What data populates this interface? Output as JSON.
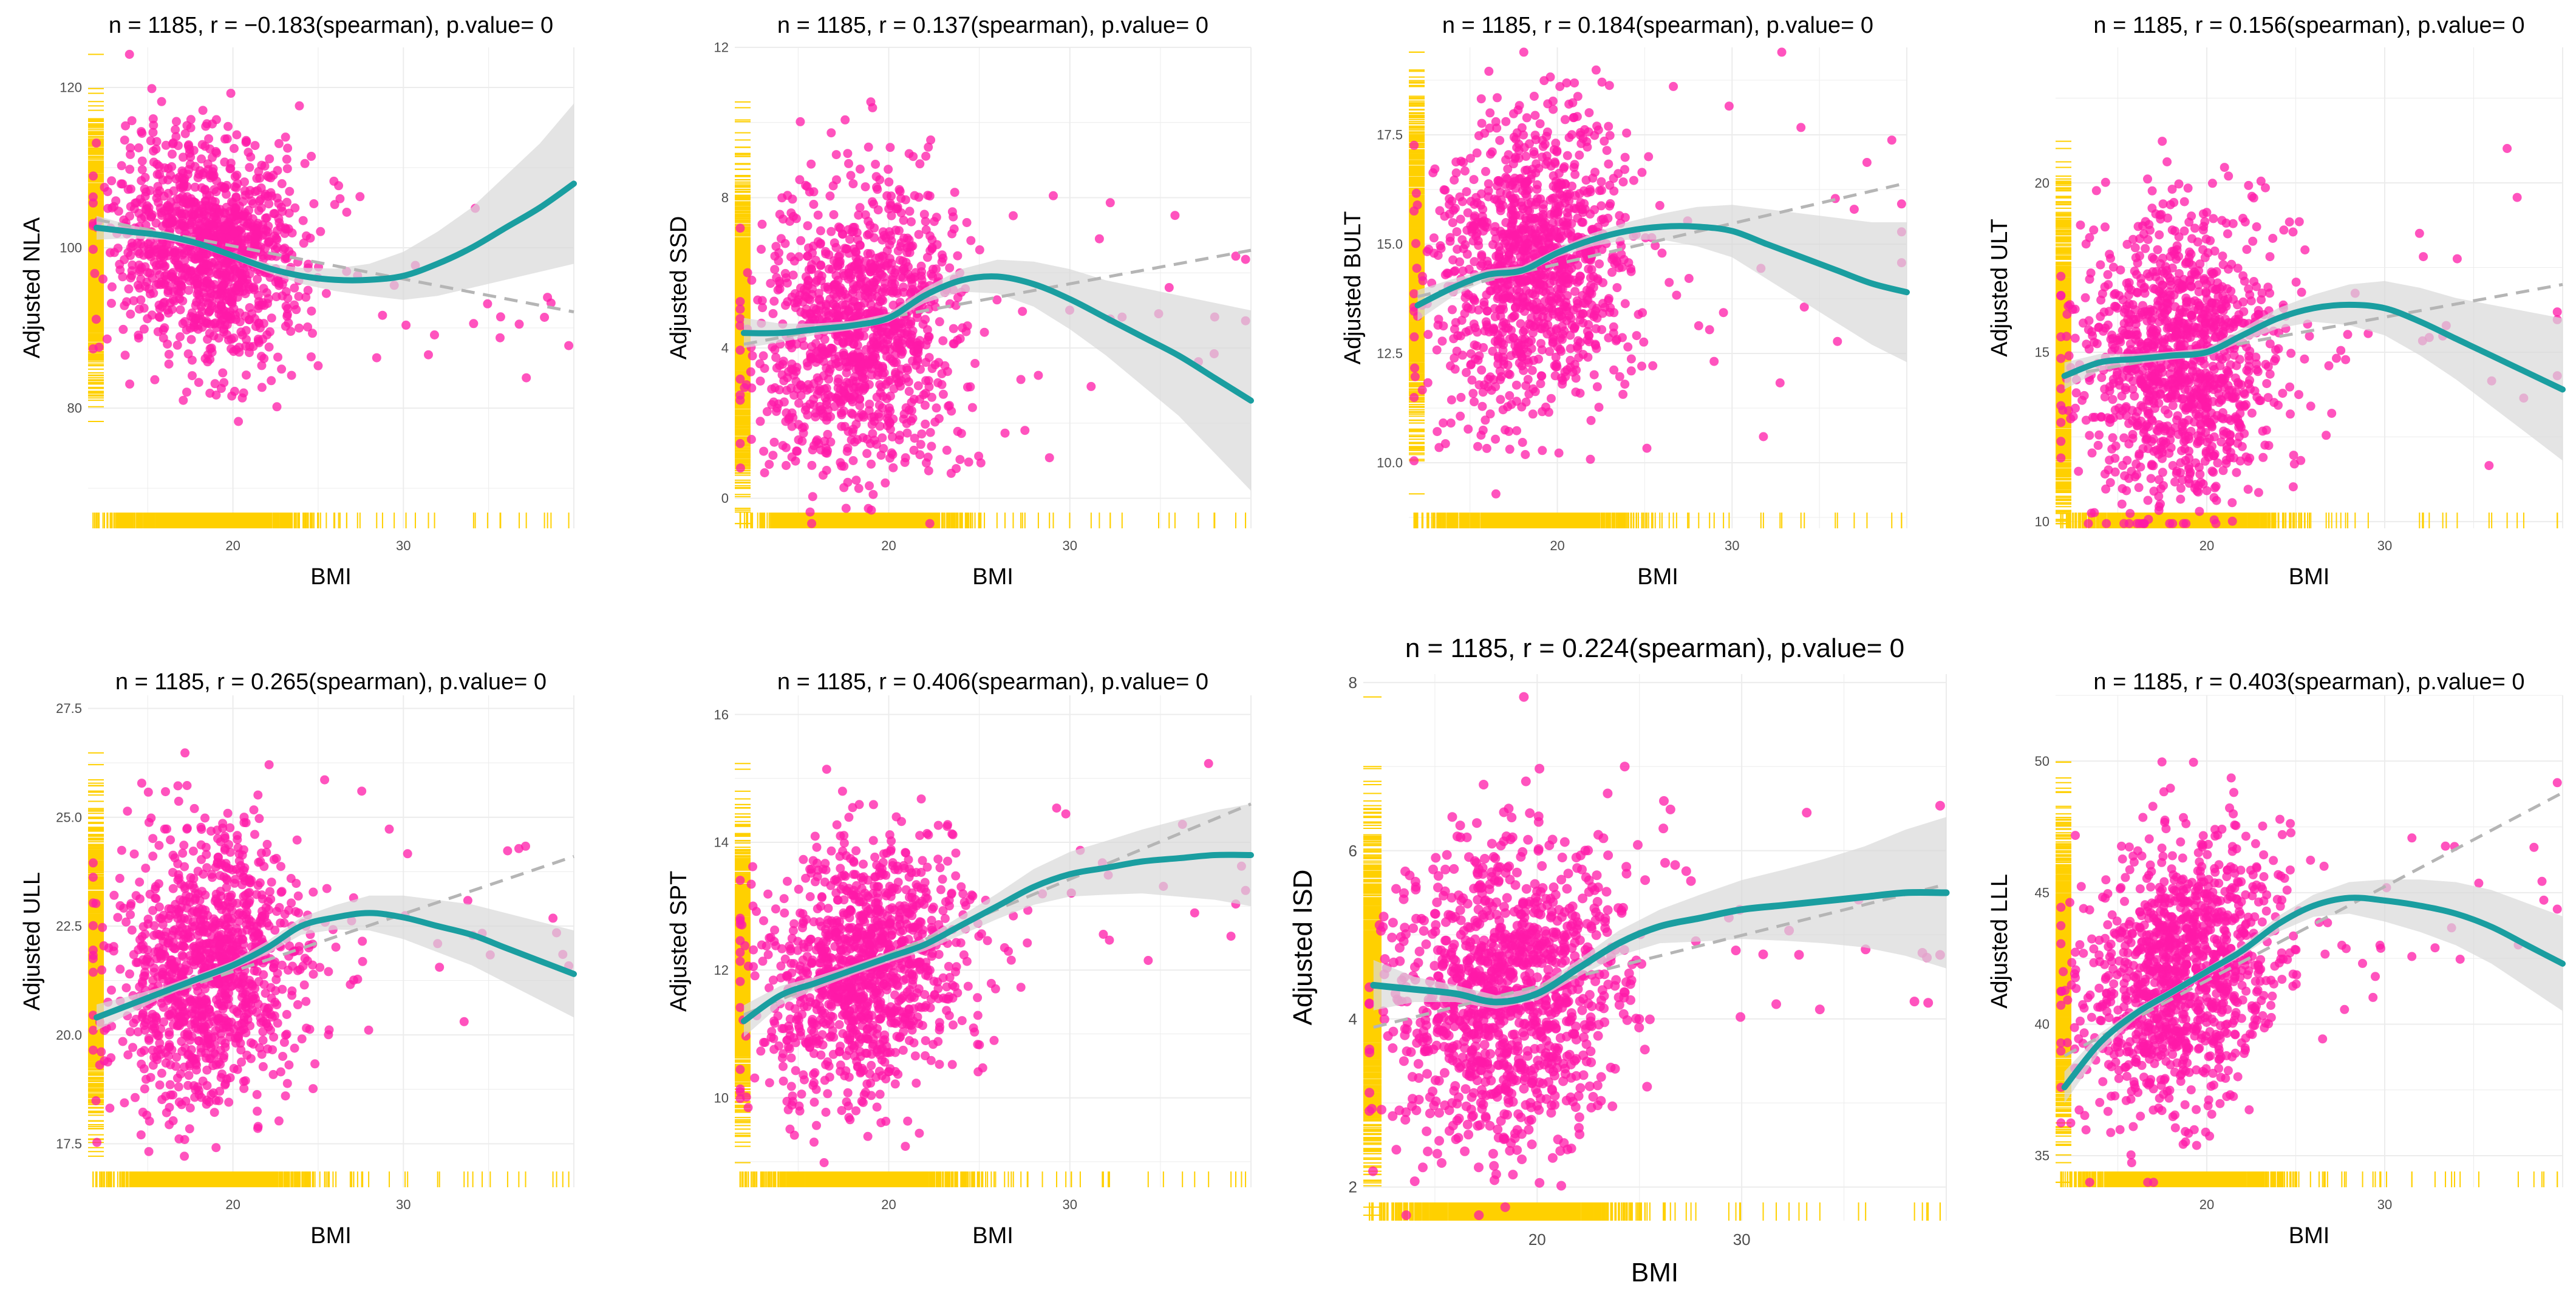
{
  "figure": {
    "colors": {
      "point": "#ff1aa8",
      "rug": "#ffd000",
      "smooth": "#1a9ea0",
      "band": "#d9d9d9",
      "linear": "#b5b5b5",
      "grid": "#ececec",
      "tick_text": "#4d4d4d"
    }
  },
  "chart_data": [
    {
      "type": "scatter",
      "title": "n = 1185, r = −0.183(spearman), p.value= 0",
      "xlabel": "BMI",
      "ylabel": "Adjusted NLA",
      "xlim": [
        11.5,
        40
      ],
      "ylim": [
        65,
        125
      ],
      "x_ticks": [
        20,
        30
      ],
      "y_ticks": [
        80,
        100,
        120
      ],
      "point_cloud": {
        "n": 1185,
        "x_center": 18.5,
        "x_sd": 2.8,
        "y_center": 100,
        "y_sd": 7,
        "x_outliers": [
          27,
          29,
          31,
          33,
          35,
          38,
          39.5
        ]
      },
      "smooth": {
        "x": [
          12,
          14,
          16,
          18,
          20,
          22,
          24,
          26,
          28,
          30,
          32,
          34,
          36,
          38,
          40
        ],
        "y": [
          102.5,
          102,
          101.5,
          100.5,
          99,
          97.5,
          96.5,
          96,
          96,
          96.5,
          98,
          100,
          102.5,
          105,
          108
        ]
      },
      "band_halfwidth": [
        1.5,
        0.8,
        0.5,
        0.4,
        0.4,
        0.6,
        1,
        1.4,
        2,
        3,
        4,
        5,
        6.5,
        8,
        10
      ],
      "linear": {
        "x": [
          12,
          40
        ],
        "y": [
          103.5,
          92
        ]
      }
    },
    {
      "type": "scatter",
      "title": "n = 1185, r = 0.137(spearman), p.value= 0",
      "xlabel": "BMI",
      "ylabel": "Adjusted SSD",
      "xlim": [
        11.5,
        40
      ],
      "ylim": [
        -0.8,
        12
      ],
      "x_ticks": [
        20,
        30
      ],
      "y_ticks": [
        0,
        4,
        8,
        12
      ],
      "point_cloud": {
        "n": 1185,
        "x_center": 18.5,
        "x_sd": 2.8,
        "y_center": 4.5,
        "y_sd": 1.9,
        "x_outliers": [
          27,
          29,
          31,
          33,
          35,
          38,
          39.5
        ]
      },
      "smooth": {
        "x": [
          12,
          14,
          16,
          18,
          20,
          22,
          24,
          26,
          28,
          30,
          32,
          34,
          36,
          38,
          40
        ],
        "y": [
          4.4,
          4.4,
          4.5,
          4.6,
          4.8,
          5.4,
          5.8,
          5.9,
          5.7,
          5.3,
          4.8,
          4.3,
          3.8,
          3.2,
          2.6
        ]
      },
      "band_halfwidth": [
        0.4,
        0.25,
        0.15,
        0.12,
        0.12,
        0.2,
        0.3,
        0.45,
        0.6,
        0.8,
        1,
        1.3,
        1.6,
        2,
        2.4
      ],
      "linear": {
        "x": [
          12,
          40
        ],
        "y": [
          4.1,
          6.6
        ]
      }
    },
    {
      "type": "scatter",
      "title": "n = 1185, r = 0.184(spearman), p.value= 0",
      "xlabel": "BMI",
      "ylabel": "Adjusted BULT",
      "xlim": [
        11.5,
        40
      ],
      "ylim": [
        8.5,
        19.5
      ],
      "x_ticks": [
        20,
        30
      ],
      "y_ticks": [
        10.0,
        12.5,
        15.0,
        17.5
      ],
      "point_cloud": {
        "n": 1185,
        "x_center": 18.5,
        "x_sd": 2.8,
        "y_center": 14.5,
        "y_sd": 1.7,
        "x_outliers": [
          27,
          29,
          31,
          33,
          35,
          38,
          39.5
        ]
      },
      "smooth": {
        "x": [
          12,
          14,
          16,
          18,
          20,
          22,
          24,
          26,
          28,
          30,
          32,
          34,
          36,
          38,
          40
        ],
        "y": [
          13.6,
          14.0,
          14.3,
          14.4,
          14.8,
          15.1,
          15.3,
          15.4,
          15.4,
          15.3,
          15.0,
          14.7,
          14.4,
          14.1,
          13.9
        ]
      },
      "band_halfwidth": [
        0.35,
        0.2,
        0.12,
        0.1,
        0.1,
        0.15,
        0.2,
        0.3,
        0.45,
        0.6,
        0.8,
        1,
        1.2,
        1.4,
        1.6
      ],
      "linear": {
        "x": [
          12,
          40
        ],
        "y": [
          13.8,
          16.4
        ]
      }
    },
    {
      "type": "scatter",
      "title": "n = 1185, r = 0.156(spearman), p.value= 0",
      "xlabel": "BMI",
      "ylabel": "Adjusted ULT",
      "xlim": [
        11.5,
        40
      ],
      "ylim": [
        9.8,
        24
      ],
      "x_ticks": [
        20,
        30
      ],
      "y_ticks": [
        10,
        15,
        20
      ],
      "point_cloud": {
        "n": 1185,
        "x_center": 18.5,
        "x_sd": 2.8,
        "y_center": 14.8,
        "y_sd": 2.2,
        "x_outliers": [
          27,
          29,
          31,
          33,
          35,
          38,
          39.5
        ]
      },
      "smooth": {
        "x": [
          12,
          14,
          16,
          18,
          20,
          22,
          24,
          26,
          28,
          30,
          32,
          34,
          36,
          38,
          40
        ],
        "y": [
          14.3,
          14.7,
          14.8,
          14.9,
          15.0,
          15.5,
          16.0,
          16.3,
          16.4,
          16.3,
          15.9,
          15.4,
          14.9,
          14.4,
          13.9
        ]
      },
      "band_halfwidth": [
        0.4,
        0.25,
        0.15,
        0.12,
        0.12,
        0.2,
        0.3,
        0.4,
        0.6,
        0.8,
        1,
        1.2,
        1.5,
        1.8,
        2.1
      ],
      "linear": {
        "x": [
          12,
          40
        ],
        "y": [
          14.3,
          17.0
        ]
      }
    },
    {
      "type": "scatter",
      "title": "n = 1185, r = 0.265(spearman), p.value= 0",
      "xlabel": "BMI",
      "ylabel": "Adjusted ULL",
      "xlim": [
        11.5,
        40
      ],
      "ylim": [
        16.5,
        27.8
      ],
      "x_ticks": [
        20,
        30
      ],
      "y_ticks": [
        17.5,
        20.0,
        22.5,
        25.0,
        27.5
      ],
      "point_cloud": {
        "n": 1185,
        "x_center": 18.5,
        "x_sd": 2.8,
        "y_center": 21.5,
        "y_sd": 1.5,
        "x_outliers": [
          27,
          29,
          31,
          33,
          35,
          38,
          39.5
        ]
      },
      "smooth": {
        "x": [
          12,
          14,
          16,
          18,
          20,
          22,
          24,
          26,
          28,
          30,
          32,
          34,
          36,
          38,
          40
        ],
        "y": [
          20.4,
          20.7,
          21.0,
          21.3,
          21.6,
          22.0,
          22.5,
          22.7,
          22.8,
          22.7,
          22.5,
          22.3,
          22.0,
          21.7,
          21.4
        ]
      },
      "band_halfwidth": [
        0.3,
        0.2,
        0.12,
        0.1,
        0.1,
        0.15,
        0.2,
        0.28,
        0.4,
        0.5,
        0.6,
        0.7,
        0.8,
        0.9,
        1.0
      ],
      "linear": {
        "x": [
          12,
          40
        ],
        "y": [
          20.4,
          24.1
        ]
      }
    },
    {
      "type": "scatter",
      "title": "n = 1185, r = 0.406(spearman), p.value= 0",
      "xlabel": "BMI",
      "ylabel": "Adjusted SPT",
      "xlim": [
        11.5,
        40
      ],
      "ylim": [
        8.6,
        16.3
      ],
      "x_ticks": [
        20,
        30
      ],
      "y_ticks": [
        10,
        12,
        14,
        16
      ],
      "point_cloud": {
        "n": 1185,
        "x_center": 18.5,
        "x_sd": 2.8,
        "y_center": 12,
        "y_sd": 1.0,
        "x_outliers": [
          27,
          29,
          31,
          33,
          35,
          38,
          39.5
        ]
      },
      "smooth": {
        "x": [
          12,
          14,
          16,
          18,
          20,
          22,
          24,
          26,
          28,
          30,
          32,
          34,
          36,
          38,
          40
        ],
        "y": [
          11.2,
          11.6,
          11.8,
          12.0,
          12.2,
          12.4,
          12.7,
          13.0,
          13.3,
          13.5,
          13.6,
          13.7,
          13.75,
          13.8,
          13.8
        ]
      },
      "band_halfwidth": [
        0.25,
        0.15,
        0.1,
        0.08,
        0.08,
        0.1,
        0.15,
        0.2,
        0.28,
        0.35,
        0.42,
        0.5,
        0.6,
        0.7,
        0.8
      ],
      "linear": {
        "x": [
          12,
          40
        ],
        "y": [
          11.3,
          14.6
        ]
      }
    },
    {
      "type": "scatter",
      "title": "n = 1185, r = 0.224(spearman), p.value= 0",
      "xlabel": "BMI",
      "ylabel": "Adjusted ISD",
      "xlim": [
        11.5,
        40
      ],
      "ylim": [
        1.6,
        8.1
      ],
      "x_ticks": [
        20,
        30
      ],
      "y_ticks": [
        2,
        4,
        6,
        8
      ],
      "point_cloud": {
        "n": 1185,
        "x_center": 18.5,
        "x_sd": 2.8,
        "y_center": 4.3,
        "y_sd": 0.9,
        "x_outliers": [
          27,
          29,
          31,
          33,
          35,
          38,
          39.5
        ]
      },
      "smooth": {
        "x": [
          12,
          14,
          16,
          18,
          20,
          22,
          24,
          26,
          28,
          30,
          32,
          34,
          36,
          38,
          40
        ],
        "y": [
          4.4,
          4.35,
          4.3,
          4.2,
          4.3,
          4.6,
          4.9,
          5.1,
          5.2,
          5.3,
          5.35,
          5.4,
          5.45,
          5.5,
          5.5
        ]
      },
      "band_halfwidth": [
        0.3,
        0.15,
        0.1,
        0.08,
        0.08,
        0.1,
        0.15,
        0.2,
        0.28,
        0.35,
        0.42,
        0.5,
        0.6,
        0.75,
        0.9
      ],
      "linear": {
        "x": [
          12,
          40
        ],
        "y": [
          3.9,
          5.6
        ]
      }
    },
    {
      "type": "scatter",
      "title": "n = 1185, r = 0.403(spearman), p.value= 0",
      "xlabel": "BMI",
      "ylabel": "Adjusted LLL",
      "xlim": [
        11.5,
        40
      ],
      "ylim": [
        33.8,
        52.5
      ],
      "x_ticks": [
        20,
        30
      ],
      "y_ticks": [
        35,
        40,
        45,
        50
      ],
      "point_cloud": {
        "n": 1185,
        "x_center": 18.5,
        "x_sd": 2.8,
        "y_center": 42,
        "y_sd": 2.5,
        "x_outliers": [
          27,
          29,
          31,
          33,
          35,
          38,
          39.5
        ]
      },
      "smooth": {
        "x": [
          12,
          14,
          16,
          18,
          20,
          22,
          24,
          26,
          28,
          30,
          32,
          34,
          36,
          38,
          40
        ],
        "y": [
          37.6,
          39.3,
          40.4,
          41.2,
          42.0,
          42.8,
          43.8,
          44.5,
          44.8,
          44.7,
          44.5,
          44.2,
          43.7,
          43.0,
          42.3
        ]
      },
      "band_halfwidth": [
        0.6,
        0.35,
        0.2,
        0.15,
        0.15,
        0.2,
        0.3,
        0.42,
        0.6,
        0.8,
        1,
        1.2,
        1.4,
        1.6,
        1.8
      ],
      "linear": {
        "x": [
          12,
          40
        ],
        "y": [
          38.8,
          48.8
        ]
      }
    }
  ]
}
